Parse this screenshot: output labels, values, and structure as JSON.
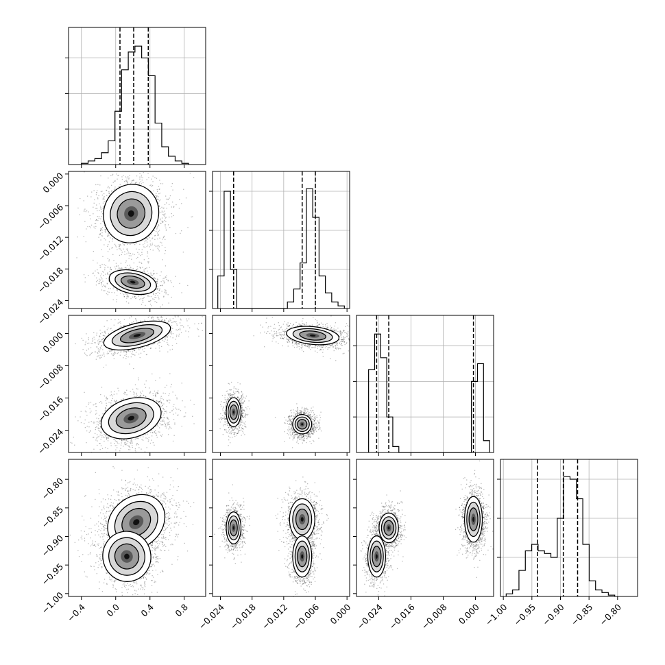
{
  "chart_data": {
    "type": "corner",
    "parameters": [
      {
        "range": [
          -0.55,
          1.05
        ],
        "ticks": [
          -0.4,
          0.0,
          0.4,
          0.8
        ],
        "tick_labels": [
          "−0.4",
          "0.0",
          "0.4",
          "0.8"
        ]
      },
      {
        "range": [
          -0.0255,
          0.0005
        ],
        "ticks": [
          -0.024,
          -0.018,
          -0.012,
          -0.006,
          0.0
        ],
        "tick_labels": [
          "−0.024",
          "−0.018",
          "−0.012",
          "−0.006",
          "0.000"
        ]
      },
      {
        "range": [
          -0.0295,
          0.0045
        ],
        "ticks": [
          -0.024,
          -0.016,
          -0.008,
          0.0
        ],
        "tick_labels": [
          "−0.024",
          "−0.016",
          "−0.008",
          "0.000"
        ]
      },
      {
        "range": [
          -1.005,
          -0.765
        ],
        "ticks": [
          -1.0,
          -0.95,
          -0.9,
          -0.85,
          -0.8
        ],
        "tick_labels": [
          "−1.00",
          "−0.95",
          "−0.90",
          "−0.85",
          "−0.80"
        ]
      }
    ],
    "histograms": [
      {
        "param": 0,
        "heights": [
          0.01,
          0.03,
          0.05,
          0.1,
          0.2,
          0.45,
          0.8,
          0.95,
          1.0,
          0.9,
          0.75,
          0.35,
          0.15,
          0.07,
          0.03,
          0.01
        ],
        "bin_range": [
          -0.4,
          0.85
        ],
        "quantiles": [
          0.05,
          0.21,
          0.38
        ],
        "max_count": 1.1
      },
      {
        "param": 1,
        "heights": [
          0.25,
          0.9,
          0.3,
          0.0,
          0.0,
          0.0,
          0.0,
          0.0,
          0.0,
          0.0,
          0.0,
          0.05,
          0.15,
          0.35,
          0.92,
          0.7,
          0.25,
          0.12,
          0.05,
          0.02
        ],
        "bin_range": [
          -0.0245,
          -0.0005
        ],
        "quantiles": [
          -0.0215,
          -0.0085,
          -0.006
        ],
        "max_count": 1.0
      },
      {
        "param": 2,
        "heights": [
          0.7,
          1.0,
          0.8,
          0.3,
          0.05,
          0.0,
          0.0,
          0.0,
          0.0,
          0.0,
          0.0,
          0.0,
          0.0,
          0.0,
          0.0,
          0.0,
          0.0,
          0.6,
          0.75,
          0.1
        ],
        "bin_range": [
          -0.0265,
          0.0035
        ],
        "quantiles": [
          -0.0245,
          -0.0215,
          -0.0005
        ],
        "max_count": 1.1
      },
      {
        "param": 3,
        "heights": [
          0.02,
          0.05,
          0.2,
          0.35,
          0.4,
          0.35,
          0.33,
          0.3,
          0.6,
          0.92,
          0.9,
          0.75,
          0.4,
          0.12,
          0.05,
          0.03,
          0.01
        ],
        "bin_range": [
          -0.995,
          -0.805
        ],
        "quantiles": [
          -0.94,
          -0.895,
          -0.87
        ],
        "max_count": 1.0
      }
    ],
    "pairs": [
      {
        "x": 0,
        "y": 1,
        "clusters": [
          {
            "cx": 0.18,
            "cy": -0.0075,
            "sx": 0.16,
            "sy": 0.0028,
            "rot": -0.35,
            "weight": 1.0
          },
          {
            "cx": 0.2,
            "cy": -0.0205,
            "sx": 0.14,
            "sy": 0.0011,
            "rot": -0.2,
            "weight": 0.6
          }
        ]
      },
      {
        "x": 0,
        "y": 2,
        "clusters": [
          {
            "cx": 0.25,
            "cy": -0.0005,
            "sx": 0.2,
            "sy": 0.0015,
            "rot": 0.25,
            "weight": 0.8
          },
          {
            "cx": 0.18,
            "cy": -0.021,
            "sx": 0.18,
            "sy": 0.0024,
            "rot": 0.3,
            "weight": 1.0
          }
        ]
      },
      {
        "x": 1,
        "y": 2,
        "clusters": [
          {
            "cx": -0.0065,
            "cy": -0.0005,
            "sx": 0.0025,
            "sy": 0.0011,
            "rot": -0.1,
            "weight": 1.0
          },
          {
            "cx": -0.0215,
            "cy": -0.0195,
            "sx": 0.0007,
            "sy": 0.0018,
            "rot": 0.0,
            "weight": 0.7
          },
          {
            "cx": -0.0085,
            "cy": -0.0225,
            "sx": 0.0009,
            "sy": 0.0012,
            "rot": 0.0,
            "weight": 0.9
          }
        ]
      },
      {
        "x": 0,
        "y": 3,
        "clusters": [
          {
            "cx": 0.24,
            "cy": -0.875,
            "sx": 0.18,
            "sy": 0.022,
            "rot": 0.7,
            "weight": 1.0
          },
          {
            "cx": 0.13,
            "cy": -0.935,
            "sx": 0.14,
            "sy": 0.022,
            "rot": 0.2,
            "weight": 0.7
          }
        ]
      },
      {
        "x": 1,
        "y": 3,
        "clusters": [
          {
            "cx": -0.0215,
            "cy": -0.885,
            "sx": 0.0007,
            "sy": 0.014,
            "rot": 0.0,
            "weight": 0.7
          },
          {
            "cx": -0.0085,
            "cy": -0.87,
            "sx": 0.0012,
            "sy": 0.018,
            "rot": 0.0,
            "weight": 0.8
          },
          {
            "cx": -0.0085,
            "cy": -0.935,
            "sx": 0.0009,
            "sy": 0.018,
            "rot": 0.0,
            "weight": 0.8
          }
        ]
      },
      {
        "x": 2,
        "y": 3,
        "clusters": [
          {
            "cx": -0.0215,
            "cy": -0.885,
            "sx": 0.0012,
            "sy": 0.013,
            "rot": 0.0,
            "weight": 0.7
          },
          {
            "cx": -0.0245,
            "cy": -0.935,
            "sx": 0.0011,
            "sy": 0.018,
            "rot": 0.0,
            "weight": 0.7
          },
          {
            "cx": -0.0005,
            "cy": -0.87,
            "sx": 0.0011,
            "sy": 0.02,
            "rot": 0.0,
            "weight": 1.0
          }
        ]
      }
    ]
  }
}
